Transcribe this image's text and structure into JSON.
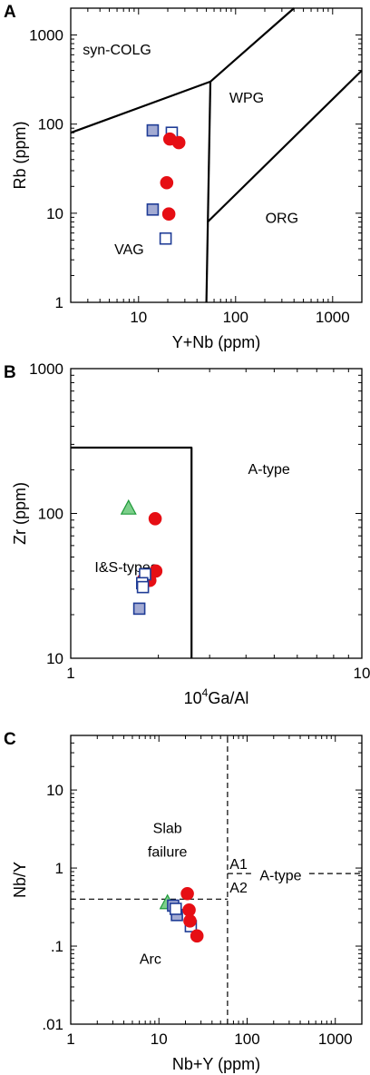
{
  "chart_data": [
    {
      "type": "scatter",
      "panel": "A",
      "xlabel": "Y+Nb (ppm)",
      "ylabel": "Rb (ppm)",
      "xscale": "log",
      "yscale": "log",
      "xlim": [
        2,
        2000
      ],
      "ylim": [
        1,
        2000
      ],
      "xticks": [
        {
          "v": 10,
          "label": "10"
        },
        {
          "v": 100,
          "label": "100"
        },
        {
          "v": 1000,
          "label": "1000"
        }
      ],
      "yticks": [
        {
          "v": 1,
          "label": "1"
        },
        {
          "v": 10,
          "label": "10"
        },
        {
          "v": 100,
          "label": "100"
        },
        {
          "v": 1000,
          "label": "1000"
        }
      ],
      "regions": [
        {
          "label": "syn-COLG",
          "x": 6,
          "y": 700
        },
        {
          "label": "WPG",
          "x": 130,
          "y": 200
        },
        {
          "label": "VAG",
          "x": 8,
          "y": 4
        },
        {
          "label": "ORG",
          "x": 300,
          "y": 9
        }
      ],
      "boundaries": [
        {
          "dashed": false,
          "points": [
            [
              2,
              80
            ],
            [
              55,
              300
            ],
            [
              400,
              2000
            ]
          ]
        },
        {
          "dashed": false,
          "points": [
            [
              55,
              300
            ],
            [
              50,
              1
            ]
          ]
        },
        {
          "dashed": false,
          "points": [
            [
              51.5,
              8
            ],
            [
              2000,
              400
            ]
          ]
        }
      ],
      "series": [
        {
          "marker": "square-filled",
          "color": "#a3abd3",
          "edge": "#1f3c96",
          "points": [
            [
              14,
              85
            ],
            [
              14,
              11
            ]
          ]
        },
        {
          "marker": "square-open",
          "color": "#ffffff",
          "edge": "#1f3c96",
          "points": [
            [
              22,
              80
            ],
            [
              19,
              5.2
            ]
          ]
        },
        {
          "marker": "circle",
          "color": "#e60e14",
          "edge": "#e60e14",
          "points": [
            [
              21,
              68
            ],
            [
              26,
              62
            ],
            [
              19.5,
              22
            ],
            [
              20.5,
              9.8
            ]
          ]
        }
      ]
    },
    {
      "type": "scatter",
      "panel": "B",
      "xlabel_base": "10",
      "xlabel_sup": "4",
      "xlabel_rest": "Ga/Al",
      "ylabel": "Zr (ppm)",
      "xscale": "log",
      "yscale": "log",
      "xlim": [
        1,
        10
      ],
      "ylim": [
        10,
        1000
      ],
      "xticks": [
        {
          "v": 1,
          "label": "1"
        },
        {
          "v": 10,
          "label": "10"
        }
      ],
      "yticks": [
        {
          "v": 10,
          "label": "10"
        },
        {
          "v": 100,
          "label": "100"
        },
        {
          "v": 1000,
          "label": "1000"
        }
      ],
      "regions": [
        {
          "label": "A-type",
          "x": 4.8,
          "y": 205
        },
        {
          "label": "I&S-types",
          "x": 1.55,
          "y": 43
        }
      ],
      "boundaries": [
        {
          "dashed": false,
          "points": [
            [
              1,
              285
            ],
            [
              2.6,
              285
            ],
            [
              2.6,
              10
            ]
          ]
        }
      ],
      "series": [
        {
          "marker": "triangle",
          "color": "#7ccf8a",
          "edge": "#1e9a3a",
          "points": [
            [
              1.58,
              108
            ]
          ]
        },
        {
          "marker": "circle",
          "color": "#e60e14",
          "edge": "#e60e14",
          "points": [
            [
              1.95,
              92
            ],
            [
              1.78,
              35
            ],
            [
              1.87,
              34.5
            ],
            [
              1.96,
              40
            ]
          ]
        },
        {
          "marker": "square-open",
          "color": "#ffffff",
          "edge": "#1f3c96",
          "points": [
            [
              1.8,
              38
            ],
            [
              1.76,
              33
            ],
            [
              1.77,
              31
            ]
          ]
        },
        {
          "marker": "square-filled",
          "color": "#a3abd3",
          "edge": "#1f3c96",
          "points": [
            [
              1.72,
              22
            ]
          ]
        }
      ]
    },
    {
      "type": "scatter",
      "panel": "C",
      "xlabel": "Nb+Y (ppm)",
      "ylabel": "Nb/Y",
      "xscale": "log",
      "yscale": "log",
      "xlim": [
        1,
        2000
      ],
      "ylim": [
        0.01,
        50
      ],
      "xticks": [
        {
          "v": 1,
          "label": "1"
        },
        {
          "v": 10,
          "label": "10"
        },
        {
          "v": 100,
          "label": "100"
        },
        {
          "v": 1000,
          "label": "1000"
        }
      ],
      "yticks": [
        {
          "v": 0.01,
          "label": ".01"
        },
        {
          "v": 0.1,
          "label": ".1"
        },
        {
          "v": 1,
          "label": "1"
        },
        {
          "v": 10,
          "label": "10"
        }
      ],
      "regions": [
        {
          "label": "Slab",
          "x": 12.5,
          "y": 3.3
        },
        {
          "label": "failure",
          "x": 12.5,
          "y": 1.65
        },
        {
          "label": "A1",
          "x": 80,
          "y": 1.15
        },
        {
          "label": "A-type",
          "x": 240,
          "y": 0.82
        },
        {
          "label": "A2",
          "x": 80,
          "y": 0.57
        },
        {
          "label": "Arc",
          "x": 8,
          "y": 0.07
        }
      ],
      "boundaries": [
        {
          "dashed": true,
          "points": [
            [
              60,
              0.01
            ],
            [
              60,
              50
            ]
          ]
        },
        {
          "dashed": true,
          "points": [
            [
              1,
              0.4
            ],
            [
              60,
              0.4
            ]
          ]
        },
        {
          "dashed": true,
          "points": [
            [
              60,
              0.85
            ],
            [
              2000,
              0.85
            ]
          ]
        }
      ],
      "series": [
        {
          "marker": "triangle",
          "color": "#7ccf8a",
          "edge": "#1e9a3a",
          "points": [
            [
              12.5,
              0.355
            ]
          ]
        },
        {
          "marker": "square-filled",
          "color": "#a3abd3",
          "edge": "#1f3c96",
          "points": [
            [
              14.5,
              0.33
            ],
            [
              16,
              0.25
            ]
          ]
        },
        {
          "marker": "square-open",
          "color": "#ffffff",
          "edge": "#1f3c96",
          "points": [
            [
              23,
              0.18
            ],
            [
              15.5,
              0.3
            ]
          ]
        },
        {
          "marker": "circle",
          "color": "#e60e14",
          "edge": "#e60e14",
          "points": [
            [
              21,
              0.47
            ],
            [
              22,
              0.29
            ],
            [
              22.5,
              0.21
            ],
            [
              27,
              0.135
            ]
          ]
        }
      ]
    }
  ]
}
